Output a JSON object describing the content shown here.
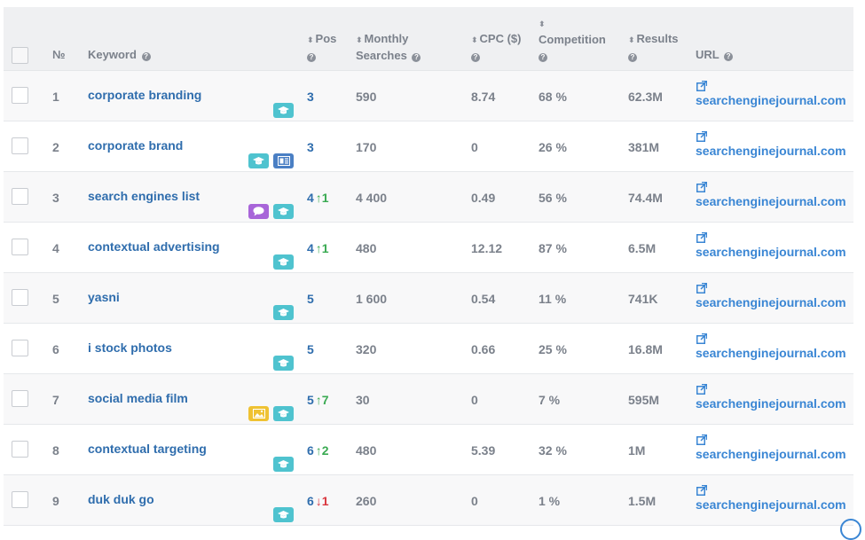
{
  "header": {
    "num_label": "№",
    "keyword_label": "Keyword",
    "pos_label": "Pos",
    "monthly_line1": "Monthly",
    "monthly_line2": "Searches",
    "cpc_label": "CPC ($)",
    "competition_label": "Competition",
    "results_label": "Results",
    "url_label": "URL",
    "help_glyph": "?",
    "sort_glyph": "⬍"
  },
  "rows": [
    {
      "num": "1",
      "keyword": "corporate branding",
      "badges": [
        "education-icon"
      ],
      "pos": "3",
      "change": "",
      "change_dir": "",
      "monthly": "590",
      "cpc": "8.74",
      "competition": "68 %",
      "results": "62.3M",
      "url": "searchenginejournal.com"
    },
    {
      "num": "2",
      "keyword": "corporate brand",
      "badges": [
        "education-icon",
        "news-icon"
      ],
      "pos": "3",
      "change": "",
      "change_dir": "",
      "monthly": "170",
      "cpc": "0",
      "competition": "26 %",
      "results": "381M",
      "url": "searchenginejournal.com"
    },
    {
      "num": "3",
      "keyword": "search engines list",
      "badges": [
        "chat-icon",
        "education-icon"
      ],
      "pos": "4",
      "change": "1",
      "change_dir": "up",
      "monthly": "4 400",
      "cpc": "0.49",
      "competition": "56 %",
      "results": "74.4M",
      "url": "searchenginejournal.com"
    },
    {
      "num": "4",
      "keyword": "contextual advertising",
      "badges": [
        "education-icon"
      ],
      "pos": "4",
      "change": "1",
      "change_dir": "up",
      "monthly": "480",
      "cpc": "12.12",
      "competition": "87 %",
      "results": "6.5M",
      "url": "searchenginejournal.com"
    },
    {
      "num": "5",
      "keyword": "yasni",
      "badges": [
        "education-icon"
      ],
      "pos": "5",
      "change": "",
      "change_dir": "",
      "monthly": "1 600",
      "cpc": "0.54",
      "competition": "11 %",
      "results": "741K",
      "url": "searchenginejournal.com"
    },
    {
      "num": "6",
      "keyword": "i stock photos",
      "badges": [
        "education-icon"
      ],
      "pos": "5",
      "change": "",
      "change_dir": "",
      "monthly": "320",
      "cpc": "0.66",
      "competition": "25 %",
      "results": "16.8M",
      "url": "searchenginejournal.com"
    },
    {
      "num": "7",
      "keyword": "social media film",
      "badges": [
        "image-icon",
        "education-icon"
      ],
      "pos": "5",
      "change": "7",
      "change_dir": "up",
      "monthly": "30",
      "cpc": "0",
      "competition": "7 %",
      "results": "595M",
      "url": "searchenginejournal.com"
    },
    {
      "num": "8",
      "keyword": "contextual targeting",
      "badges": [
        "education-icon"
      ],
      "pos": "6",
      "change": "2",
      "change_dir": "up",
      "monthly": "480",
      "cpc": "5.39",
      "competition": "32 %",
      "results": "1M",
      "url": "searchenginejournal.com"
    },
    {
      "num": "9",
      "keyword": "duk duk go",
      "badges": [
        "education-icon"
      ],
      "pos": "6",
      "change": "1",
      "change_dir": "down",
      "monthly": "260",
      "cpc": "0",
      "competition": "1 %",
      "results": "1.5M",
      "url": "searchenginejournal.com"
    }
  ],
  "colors": {
    "keyword_link": "#2f6dad",
    "url_link": "#3a86d4",
    "change_up": "#3aaa52",
    "change_down": "#d9363e",
    "badge_education": "#4fc3cf",
    "badge_news": "#4a7fc4",
    "badge_chat": "#a865d9",
    "badge_image": "#efc232"
  }
}
